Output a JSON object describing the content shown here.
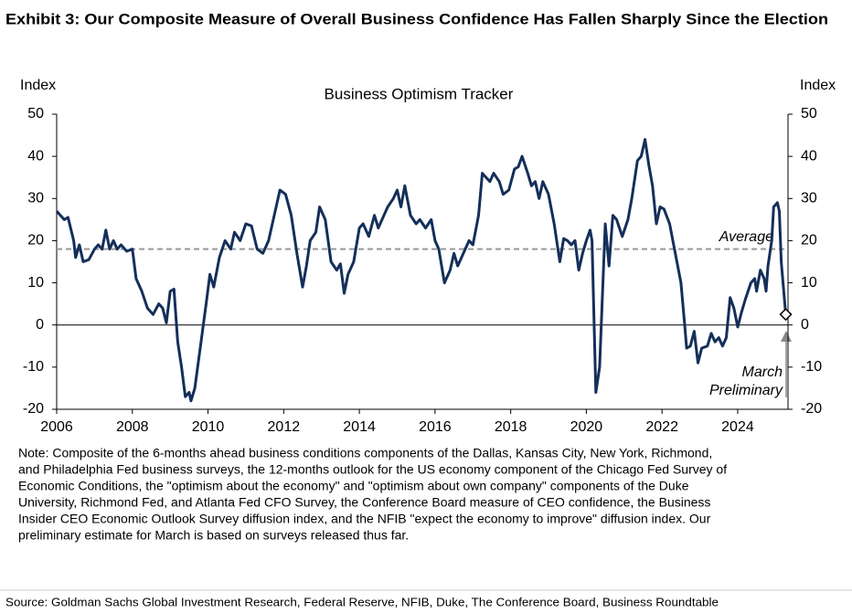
{
  "chart_data": {
    "type": "line",
    "title": "Exhibit 3: Our Composite Measure of Overall Business Confidence Has Fallen Sharply Since the Election",
    "subtitle": "Business Optimism Tracker",
    "y_label": "Index",
    "y2_label": "Index",
    "xlim": [
      2006,
      2025.33
    ],
    "xticks": [
      2006,
      2008,
      2010,
      2012,
      2014,
      2016,
      2018,
      2020,
      2022,
      2024
    ],
    "ylim": [
      -20,
      50
    ],
    "yticks": [
      50,
      40,
      30,
      20,
      10,
      0,
      -10,
      -20
    ],
    "y2lim": [
      -20,
      50
    ],
    "y2ticks": [
      50,
      40,
      30,
      20,
      10,
      0,
      -10,
      -20
    ],
    "reference_line": {
      "value": 18,
      "label": "Average"
    },
    "annotation": [
      "March",
      "Preliminary"
    ],
    "series": [
      {
        "color": "#142f5a",
        "x": [
          2006.0,
          2006.1,
          2006.2,
          2006.3,
          2006.45,
          2006.5,
          2006.6,
          2006.7,
          2006.85,
          2007.0,
          2007.1,
          2007.2,
          2007.3,
          2007.4,
          2007.5,
          2007.6,
          2007.7,
          2007.85,
          2008.0,
          2008.1,
          2008.25,
          2008.4,
          2008.55,
          2008.7,
          2008.8,
          2008.9,
          2009.0,
          2009.1,
          2009.2,
          2009.3,
          2009.4,
          2009.5,
          2009.55,
          2009.65,
          2009.8,
          2009.95,
          2010.05,
          2010.15,
          2010.3,
          2010.45,
          2010.6,
          2010.7,
          2010.85,
          2011.0,
          2011.15,
          2011.3,
          2011.45,
          2011.6,
          2011.75,
          2011.9,
          2012.05,
          2012.2,
          2012.35,
          2012.5,
          2012.6,
          2012.7,
          2012.85,
          2012.95,
          2013.1,
          2013.25,
          2013.4,
          2013.5,
          2013.6,
          2013.7,
          2013.85,
          2014.0,
          2014.1,
          2014.25,
          2014.4,
          2014.5,
          2014.6,
          2014.75,
          2014.9,
          2015.0,
          2015.1,
          2015.2,
          2015.35,
          2015.5,
          2015.6,
          2015.75,
          2015.9,
          2016.0,
          2016.1,
          2016.25,
          2016.4,
          2016.5,
          2016.6,
          2016.75,
          2016.9,
          2017.0,
          2017.15,
          2017.25,
          2017.35,
          2017.45,
          2017.55,
          2017.7,
          2017.8,
          2017.95,
          2018.1,
          2018.2,
          2018.3,
          2018.45,
          2018.55,
          2018.65,
          2018.75,
          2018.85,
          2019.0,
          2019.15,
          2019.3,
          2019.4,
          2019.5,
          2019.6,
          2019.7,
          2019.8,
          2019.9,
          2020.0,
          2020.1,
          2020.15,
          2020.25,
          2020.35,
          2020.5,
          2020.6,
          2020.7,
          2020.8,
          2020.95,
          2021.1,
          2021.2,
          2021.35,
          2021.45,
          2021.55,
          2021.65,
          2021.75,
          2021.85,
          2021.95,
          2022.05,
          2022.2,
          2022.35,
          2022.5,
          2022.6,
          2022.65,
          2022.75,
          2022.85,
          2022.95,
          2023.05,
          2023.2,
          2023.3,
          2023.4,
          2023.5,
          2023.6,
          2023.7,
          2023.8,
          2023.9,
          2024.0,
          2024.1,
          2024.2,
          2024.35,
          2024.45,
          2024.5,
          2024.6,
          2024.7,
          2024.75,
          2024.8,
          2024.9,
          2024.95,
          2025.05,
          2025.1,
          2025.15,
          2025.27
        ],
        "values": [
          27,
          26,
          25,
          25.5,
          20,
          16,
          19,
          15,
          15.5,
          18,
          19,
          18,
          22.5,
          18,
          20,
          18,
          19,
          17.5,
          18,
          11,
          8,
          4,
          2.5,
          5,
          4,
          0.5,
          8,
          8.5,
          -4,
          -10,
          -17,
          -16,
          -18,
          -15,
          -5,
          5,
          12,
          9,
          16,
          20,
          18,
          22,
          20,
          24,
          23.5,
          18,
          17,
          20,
          26,
          32,
          31,
          26,
          17,
          9,
          14,
          20,
          22,
          28,
          25,
          15,
          13,
          14.5,
          7.5,
          12,
          15,
          23,
          24,
          21,
          26,
          23,
          25,
          28,
          30,
          32,
          28,
          33,
          26,
          24,
          25,
          23,
          25,
          20,
          18,
          10,
          13,
          17,
          14,
          17,
          20,
          19,
          26,
          36,
          35,
          34,
          36,
          34,
          31,
          32,
          37,
          37.5,
          40,
          36,
          33,
          34,
          30,
          34,
          31,
          24,
          15,
          20.5,
          20,
          19,
          20,
          13,
          17,
          20,
          22.5,
          20,
          -16,
          -10,
          24,
          14,
          26,
          25,
          21,
          25,
          30,
          39,
          40,
          44,
          38,
          33,
          24,
          28,
          27.5,
          24,
          17,
          10,
          0,
          -5.5,
          -5,
          -1.5,
          -9,
          -5.5,
          -5,
          -2,
          -4,
          -3,
          -5,
          -3,
          6.5,
          4,
          -0.5,
          3,
          6,
          10,
          11,
          8,
          13,
          11,
          8,
          14,
          20,
          28,
          29,
          27,
          15,
          2.5
        ]
      }
    ]
  },
  "note": [
    "Note: Composite of the 6-months ahead business conditions components of the Dallas, Kansas City, New York, Richmond,",
    "and Philadelphia Fed business surveys, the 12-months outlook for the US economy component of the Chicago Fed Survey of",
    "Economic Conditions, the \"optimism about the economy\" and \"optimism about own company\" components of the Duke",
    "University, Richmond Fed, and Atlanta Fed CFO Survey, the Conference Board measure of CEO confidence, the Business",
    "Insider CEO Economic Outlook Survey diffusion index, and the NFIB \"expect the economy to improve\" diffusion index. Our",
    "preliminary estimate for March is based on surveys released thus far."
  ],
  "source": "Source: Goldman Sachs Global Investment Research, Federal Reserve, NFIB, Duke, The Conference Board, Business Roundtable"
}
